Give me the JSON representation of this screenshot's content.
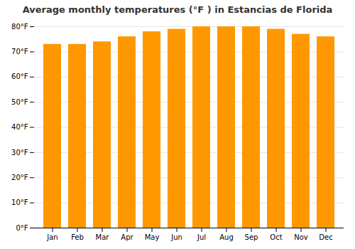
{
  "chart_data": {
    "type": "bar",
    "title": "Average monthly temperatures (°F ) in Estancias de Florida",
    "categories": [
      "Jan",
      "Feb",
      "Mar",
      "Apr",
      "May",
      "Jun",
      "Jul",
      "Aug",
      "Sep",
      "Oct",
      "Nov",
      "Dec"
    ],
    "values": [
      73,
      73,
      74,
      76,
      78,
      79,
      80,
      80,
      80,
      79,
      77,
      76
    ],
    "color": "#FF9800",
    "ylim": [
      0,
      80
    ],
    "yticks": [
      {
        "value": 0,
        "label": "0°F"
      },
      {
        "value": 10,
        "label": "10°F"
      },
      {
        "value": 20,
        "label": "20°F"
      },
      {
        "value": 30,
        "label": "30°F"
      },
      {
        "value": 40,
        "label": "40°F"
      },
      {
        "value": 50,
        "label": "50°F"
      },
      {
        "value": 60,
        "label": "60°F"
      },
      {
        "value": 70,
        "label": "70°F"
      },
      {
        "value": 80,
        "label": "80°F"
      }
    ],
    "grid": true
  }
}
